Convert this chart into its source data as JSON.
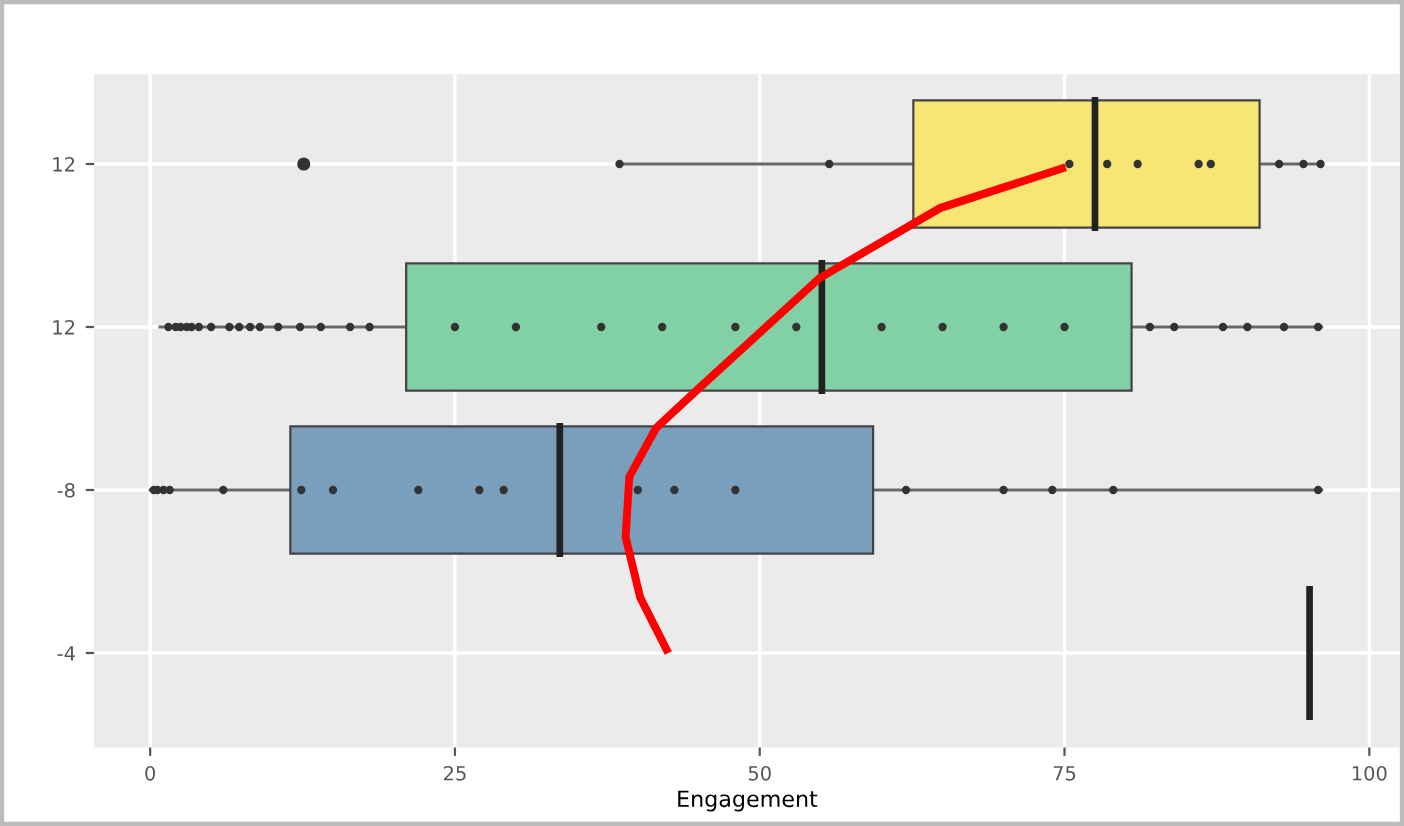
{
  "chart_data": {
    "type": "box",
    "orientation": "horizontal",
    "xlabel": "Engagement",
    "categories": [
      "12",
      "12",
      "-8",
      "-4"
    ],
    "xlim": [
      -4.6,
      102.5
    ],
    "xticks": [
      0,
      25,
      50,
      75,
      100
    ],
    "grid": true,
    "colors": [
      "#f7e673",
      "#82d0a6",
      "#7a9fbd",
      "#222222"
    ],
    "boxes": [
      {
        "low": 38.9,
        "q1": 62.6,
        "median": 77.5,
        "q3": 91.0,
        "high": 96.1,
        "outliers": [
          12.6,
          38.5,
          55.7,
          75.4,
          78.5,
          81,
          86,
          87,
          92.6,
          94.6,
          96
        ]
      },
      {
        "low": 0.8,
        "q1": 21.0,
        "median": 55.1,
        "q3": 80.5,
        "high": 96.1,
        "outliers": [
          1.5,
          2.1,
          2.5,
          3,
          3.4,
          4,
          5,
          6.5,
          7.3,
          8.2,
          9,
          10.5,
          12.3,
          14,
          16.4,
          18,
          25,
          30,
          37,
          42,
          48,
          53,
          60,
          65,
          70,
          75,
          82,
          84,
          88,
          90,
          93,
          95.8
        ]
      },
      {
        "low": 0,
        "q1": 11.5,
        "median": 33.6,
        "q3": 59.3,
        "high": 96.1,
        "outliers": [
          0.3,
          0.6,
          1.1,
          1.6,
          6,
          12.4,
          15,
          22,
          27,
          29,
          40,
          43,
          48,
          62,
          70,
          74,
          79,
          95.8
        ]
      },
      {
        "low": 95.1,
        "q1": 95.1,
        "median": 95.1,
        "q3": 95.1,
        "high": 95.1
      }
    ]
  }
}
